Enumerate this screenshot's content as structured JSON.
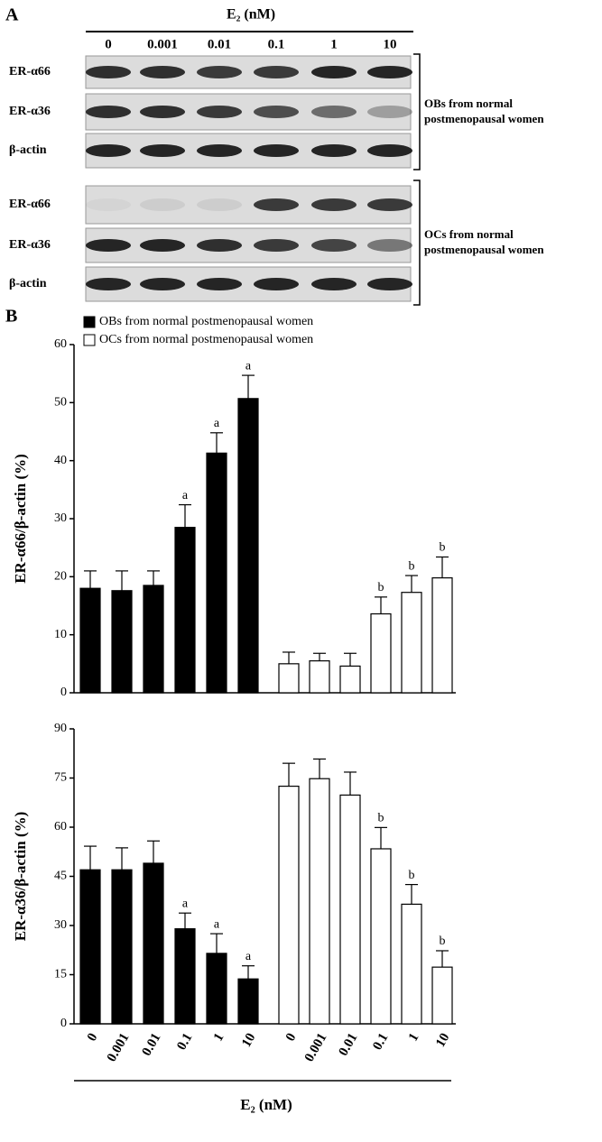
{
  "blot": {
    "panel": "A",
    "header": "E₂ (nM)",
    "lanes": [
      "0",
      "0.001",
      "0.01",
      "0.1",
      "1",
      "10"
    ],
    "groups": [
      {
        "rows": [
          "ER-α66",
          "ER-α36",
          "β-actin"
        ],
        "label": [
          "OBs from normal",
          "postmenopausal women"
        ]
      },
      {
        "rows": [
          "ER-α66",
          "ER-α36",
          "β-actin"
        ],
        "label": [
          "OCs from normal",
          "postmenopausal women"
        ]
      }
    ]
  },
  "chart_data": [
    {
      "type": "bar",
      "panel": "B",
      "ylabel": "ER-α66/β-actin (%)",
      "ylim": [
        0,
        60
      ],
      "yticks": [
        0,
        10,
        20,
        30,
        40,
        50,
        60
      ],
      "legend": "top-left",
      "series": [
        {
          "name": "OBs from normal postmenopausal women",
          "color": "#000000",
          "values": [
            18,
            17.6,
            18.5,
            28.5,
            41.3,
            50.7
          ],
          "errors": [
            3,
            3.4,
            2.5,
            3.9,
            3.5,
            4
          ],
          "annotations": [
            null,
            null,
            null,
            "a",
            "a",
            "a"
          ]
        },
        {
          "name": "OCs from normal postmenopausal women",
          "color": "#ffffff",
          "values": [
            5,
            5.5,
            4.6,
            13.6,
            17.3,
            19.8
          ],
          "errors": [
            2,
            1.3,
            2.2,
            2.9,
            2.9,
            3.6
          ],
          "annotations": [
            null,
            null,
            null,
            "b",
            "b",
            "b"
          ]
        }
      ]
    },
    {
      "type": "bar",
      "ylabel": "ER-α36/β-actin (%)",
      "xlabel": "E₂ (nM)",
      "ylim": [
        0,
        90
      ],
      "yticks": [
        0,
        15,
        30,
        45,
        60,
        75,
        90
      ],
      "categories": [
        "0",
        "0.001",
        "0.01",
        "0.1",
        "1",
        "10"
      ],
      "series": [
        {
          "color": "#000000",
          "values": [
            47,
            47,
            49,
            29,
            21.5,
            13.7
          ],
          "errors": [
            7.2,
            6.7,
            6.8,
            4.8,
            6,
            4
          ],
          "annotations": [
            null,
            null,
            null,
            "a",
            "a",
            "a"
          ]
        },
        {
          "color": "#ffffff",
          "values": [
            72.5,
            74.8,
            69.8,
            53.4,
            36.5,
            17.3
          ],
          "errors": [
            7,
            6,
            7,
            6.5,
            6,
            5
          ],
          "annotations": [
            null,
            null,
            null,
            "b",
            "b",
            "b"
          ]
        }
      ]
    }
  ]
}
